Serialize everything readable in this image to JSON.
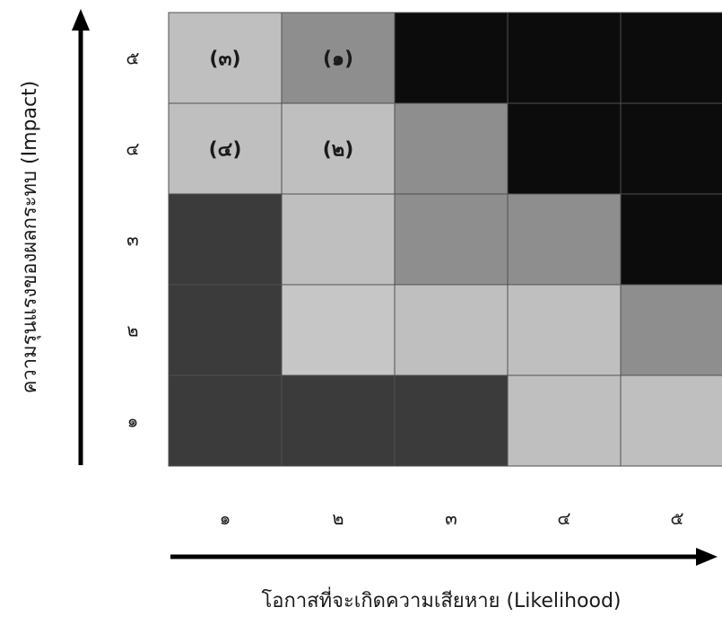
{
  "chart_data": {
    "type": "heatmap",
    "x_axis": {
      "title": "โอกาสที่จะเกิดความเสียหาย (Likelihood)",
      "ticks": [
        "๑",
        "๒",
        "๓",
        "๔",
        "๕"
      ]
    },
    "y_axis": {
      "title": "ความรุนแรงของผลกระทบ (Impact)",
      "ticks": [
        "๑",
        "๒",
        "๓",
        "๔",
        "๕"
      ]
    },
    "colors": {
      "black": "#0c0c0c",
      "dark": "#3b3b3b",
      "medium": "#8e8e8e",
      "light": "#bfbfbf",
      "light_alt": "#c6c6c6",
      "border": "#505050"
    },
    "cells": [
      {
        "likelihood": 1,
        "impact": 5,
        "level": "light",
        "label": "(๓)"
      },
      {
        "likelihood": 2,
        "impact": 5,
        "level": "medium",
        "label": "(๑)"
      },
      {
        "likelihood": 3,
        "impact": 5,
        "level": "black",
        "label": ""
      },
      {
        "likelihood": 4,
        "impact": 5,
        "level": "black",
        "label": ""
      },
      {
        "likelihood": 5,
        "impact": 5,
        "level": "black",
        "label": ""
      },
      {
        "likelihood": 1,
        "impact": 4,
        "level": "light",
        "label": "(๔)"
      },
      {
        "likelihood": 2,
        "impact": 4,
        "level": "light",
        "label": "(๒)"
      },
      {
        "likelihood": 3,
        "impact": 4,
        "level": "medium",
        "label": ""
      },
      {
        "likelihood": 4,
        "impact": 4,
        "level": "black",
        "label": ""
      },
      {
        "likelihood": 5,
        "impact": 4,
        "level": "black",
        "label": ""
      },
      {
        "likelihood": 1,
        "impact": 3,
        "level": "dark",
        "label": ""
      },
      {
        "likelihood": 2,
        "impact": 3,
        "level": "light",
        "label": ""
      },
      {
        "likelihood": 3,
        "impact": 3,
        "level": "medium",
        "label": ""
      },
      {
        "likelihood": 4,
        "impact": 3,
        "level": "medium",
        "label": ""
      },
      {
        "likelihood": 5,
        "impact": 3,
        "level": "black",
        "label": ""
      },
      {
        "likelihood": 1,
        "impact": 2,
        "level": "dark",
        "label": ""
      },
      {
        "likelihood": 2,
        "impact": 2,
        "level": "light_alt",
        "label": ""
      },
      {
        "likelihood": 3,
        "impact": 2,
        "level": "light",
        "label": ""
      },
      {
        "likelihood": 4,
        "impact": 2,
        "level": "light",
        "label": ""
      },
      {
        "likelihood": 5,
        "impact": 2,
        "level": "medium",
        "label": ""
      },
      {
        "likelihood": 1,
        "impact": 1,
        "level": "dark",
        "label": ""
      },
      {
        "likelihood": 2,
        "impact": 1,
        "level": "dark",
        "label": ""
      },
      {
        "likelihood": 3,
        "impact": 1,
        "level": "dark",
        "label": ""
      },
      {
        "likelihood": 4,
        "impact": 1,
        "level": "light",
        "label": ""
      },
      {
        "likelihood": 5,
        "impact": 1,
        "level": "light",
        "label": ""
      }
    ]
  }
}
